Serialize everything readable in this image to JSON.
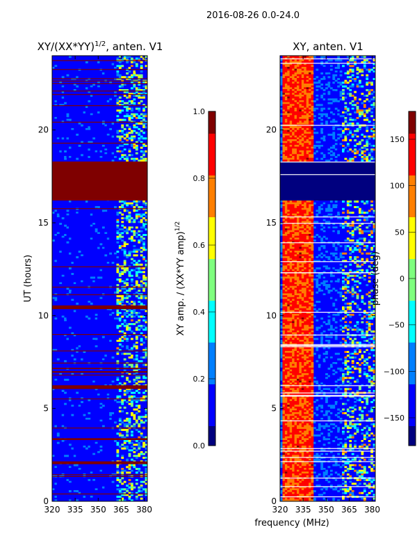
{
  "figure": {
    "suptitle": "2016-08-26 0.0-24.0",
    "xlabel_common": "frequency (MHz)"
  },
  "colormap": [
    "#00007f",
    "#0000ff",
    "#007fff",
    "#00ffff",
    "#7fff7f",
    "#ffff00",
    "#ff7f00",
    "#ff0000",
    "#7f0000"
  ],
  "chart_data": [
    {
      "type": "heatmap",
      "title_text": "XY/(XX*YY)",
      "title_sup": "1/2",
      "title_suffix": ", anten. V1",
      "xlabel": "",
      "ylabel": "UT (hours)",
      "x_range": [
        320,
        382
      ],
      "y_range": [
        0,
        24
      ],
      "x_ticks": [
        320,
        335,
        350,
        365,
        380
      ],
      "y_ticks": [
        0,
        5,
        10,
        15,
        20
      ],
      "colorbar": {
        "label_text": "XY amp. / (XX*YY amp)",
        "label_sup": "1/2",
        "range": [
          0.0,
          1.0
        ],
        "ticks": [
          "0.0",
          "0.2",
          "0.4",
          "0.6",
          "0.8",
          "1.0"
        ],
        "tick_values": [
          0.0,
          0.2,
          0.4,
          0.6,
          0.8,
          1.0
        ]
      },
      "flagged_hours": [
        [
          16.2,
          18.3
        ],
        [
          10.35,
          10.55
        ],
        [
          6.05,
          6.25
        ],
        [
          2.0,
          2.15
        ],
        [
          3.3,
          3.4
        ]
      ],
      "band": {
        "freq_from": 362,
        "freq_to": 382,
        "value": 0.45
      }
    },
    {
      "type": "heatmap",
      "title_text": "XY, anten. V1",
      "xlabel": "frequency (MHz)",
      "ylabel": "",
      "x_range": [
        320,
        382
      ],
      "y_range": [
        0,
        24
      ],
      "x_ticks": [
        320,
        335,
        350,
        365,
        380
      ],
      "y_ticks": [
        0,
        5,
        10,
        15,
        20
      ],
      "colorbar": {
        "label_text": "phase (deg)",
        "range": [
          -180,
          180
        ],
        "ticks": [
          "150",
          "100",
          "50",
          "0",
          "−50",
          "−100",
          "−150"
        ],
        "tick_values": [
          150,
          100,
          50,
          0,
          -50,
          -100,
          -150
        ]
      },
      "flagged_hours": [
        [
          16.2,
          18.3
        ]
      ],
      "band": {
        "freq_from": 321,
        "freq_to": 341,
        "value": 130
      }
    }
  ]
}
